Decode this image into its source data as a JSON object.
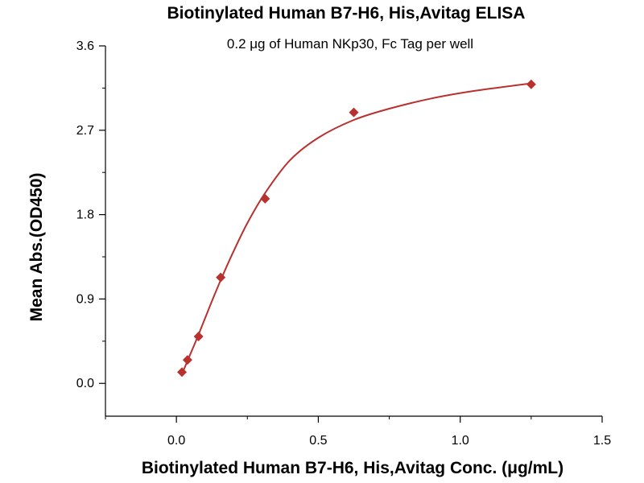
{
  "chart_data": {
    "type": "scatter",
    "title": "Biotinylated Human B7-H6, His,Avitag ELISA",
    "subtitle": "0.2 μg of Human NKp30, Fc Tag per well",
    "xlabel": "Biotinylated Human B7-H6, His,Avitag Conc. (μg/mL)",
    "ylabel": "Mean Abs.(OD450)",
    "xlim": [
      -0.25,
      1.5
    ],
    "ylim": [
      -0.35,
      3.6
    ],
    "x_ticks": [
      "0.0",
      "0.5",
      "1.0",
      "1.5"
    ],
    "x_tick_values": [
      0.0,
      0.5,
      1.0,
      1.5
    ],
    "y_ticks": [
      "0.0",
      "0.9",
      "1.8",
      "2.7",
      "3.6"
    ],
    "y_tick_values": [
      0.0,
      0.9,
      1.8,
      2.7,
      3.6
    ],
    "grid": false,
    "series": [
      {
        "marker": "diamond",
        "color": "#b8312f",
        "points": [
          {
            "x": 0.0195,
            "y": 0.12
          },
          {
            "x": 0.039,
            "y": 0.25
          },
          {
            "x": 0.078,
            "y": 0.5
          },
          {
            "x": 0.156,
            "y": 1.13
          },
          {
            "x": 0.3125,
            "y": 1.97
          },
          {
            "x": 0.625,
            "y": 2.89
          },
          {
            "x": 1.25,
            "y": 3.19
          }
        ],
        "fit_curve": {
          "color": "#b8312f",
          "x": [
            0.0195,
            0.039,
            0.078,
            0.12,
            0.156,
            0.2,
            0.25,
            0.3125,
            0.4,
            0.5,
            0.625,
            0.75,
            0.9,
            1.05,
            1.25
          ],
          "y": [
            0.1,
            0.24,
            0.52,
            0.84,
            1.1,
            1.4,
            1.71,
            2.03,
            2.38,
            2.62,
            2.81,
            2.93,
            3.04,
            3.12,
            3.2
          ]
        }
      }
    ]
  }
}
